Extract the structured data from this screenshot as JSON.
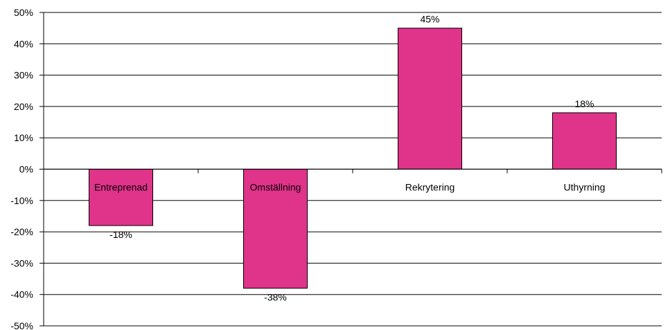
{
  "chart_data": {
    "type": "bar",
    "categories": [
      "Entreprenad",
      "Omställning",
      "Rekrytering",
      "Uthyrning"
    ],
    "values": [
      -18,
      -38,
      45,
      18
    ],
    "data_labels": [
      "-18%",
      "-38%",
      "45%",
      "18%"
    ],
    "ylim": [
      -50,
      50
    ],
    "y_ticks": [
      50,
      40,
      30,
      20,
      10,
      0,
      -10,
      -20,
      -30,
      -40,
      -50
    ],
    "y_tick_labels": [
      "50%",
      "40%",
      "30%",
      "20%",
      "10%",
      "0%",
      "-10%",
      "-20%",
      "-30%",
      "-40%",
      "-50%"
    ],
    "grid": true,
    "legend": "none",
    "title": "",
    "xlabel": "",
    "ylabel": "",
    "bar_color": "#e0338a",
    "bar_outline_color": "#000000"
  }
}
